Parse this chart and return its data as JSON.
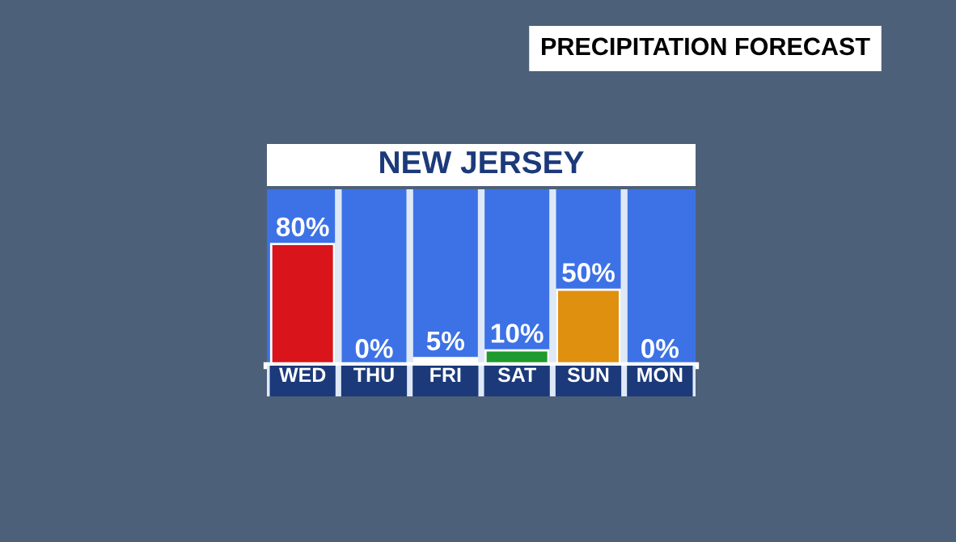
{
  "chart_data": {
    "type": "bar",
    "title": "PRECIPITATION FORECAST",
    "subtitle": "NEW JERSEY",
    "categories": [
      "WED",
      "THU",
      "FRI",
      "SAT",
      "SUN",
      "MON"
    ],
    "values": [
      80,
      0,
      5,
      10,
      50,
      0
    ],
    "colors": [
      "#d9141a",
      "#ffffff",
      "#ffffff",
      "#1e9a2e",
      "#e0900f",
      "#ffffff"
    ],
    "value_labels": [
      "80%",
      "0%",
      "5%",
      "10%",
      "50%",
      "0%"
    ],
    "ylim": [
      0,
      116
    ],
    "tick_labels": "x"
  }
}
